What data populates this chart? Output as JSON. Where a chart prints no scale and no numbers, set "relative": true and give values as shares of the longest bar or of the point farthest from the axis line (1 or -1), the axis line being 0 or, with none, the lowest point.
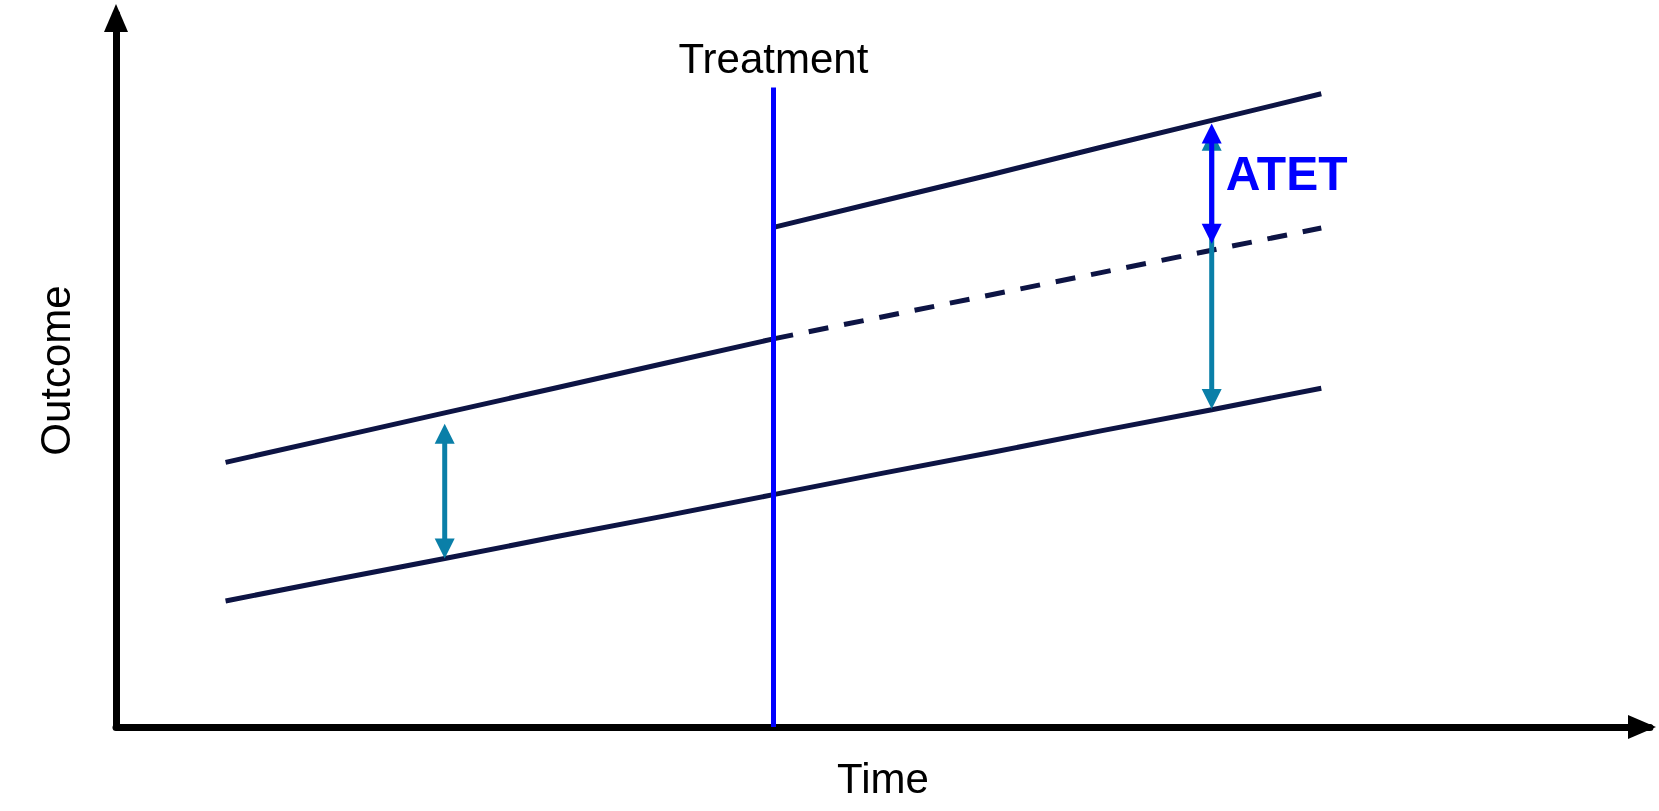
{
  "chart_data": {
    "type": "line",
    "relative": true,
    "xlabel": "Time",
    "ylabel": "Outcome",
    "grid": false,
    "marker": "none",
    "categories": [
      null,
      null,
      null,
      null,
      null,
      null,
      null,
      null,
      null,
      null,
      null,
      null,
      null,
      null,
      null
    ],
    "series": [
      {
        "color": "#0d1444",
        "values": [
          null,
          0.418,
          0.457,
          0.496,
          0.535,
          0.574,
          0.613,
          null,
          null,
          null,
          null,
          null,
          null,
          null,
          null
        ]
      },
      {
        "color": "#0d1444",
        "values": [
          null,
          null,
          null,
          null,
          null,
          null,
          0.789,
          0.831,
          0.873,
          0.916,
          0.958,
          1,
          null,
          null,
          null
        ]
      },
      {
        "color": "#0d1444",
        "line_style": "dashed",
        "values": [
          null,
          null,
          null,
          null,
          null,
          null,
          0.613,
          0.648,
          0.683,
          0.718,
          0.753,
          0.788,
          null,
          null,
          null
        ]
      },
      {
        "color": "#0d1444",
        "values": [
          null,
          0.199,
          0.233,
          0.266,
          0.3,
          0.333,
          0.367,
          0.401,
          0.434,
          0.468,
          0.501,
          0.535,
          null,
          null,
          null
        ]
      }
    ],
    "annotations": [
      "Treatment",
      "ATET"
    ]
  }
}
